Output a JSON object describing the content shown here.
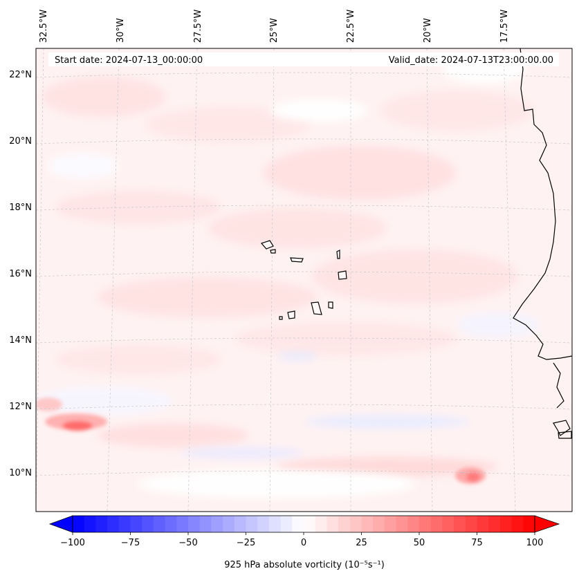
{
  "map": {
    "header": {
      "start_date": "Start date: 2024-07-13_00:00:00",
      "valid_date": "Valid_date: 2024-07-13T23:00:00.00"
    },
    "lon_labels": [
      "32.5°W",
      "30°W",
      "27.5°W",
      "25°W",
      "22.5°W",
      "20°W",
      "17.5°W"
    ],
    "lat_labels": [
      "22°N",
      "20°N",
      "18°N",
      "16°N",
      "14°N",
      "12°N",
      "10°N"
    ],
    "features": [
      "Cape Verde islands",
      "West African coastline"
    ],
    "colors": {
      "negative_max": "#0000ff",
      "neutral": "#ffffff",
      "positive_max": "#ff0000",
      "coast": "#000000",
      "grid": "#c8c8c8"
    }
  },
  "colorbar": {
    "min": -100,
    "max": 100,
    "ticks": [
      "−100",
      "−75",
      "−50",
      "−25",
      "0",
      "25",
      "50",
      "75",
      "100"
    ],
    "label": "925 hPa absolute vorticity (10⁻⁵s⁻¹)"
  }
}
